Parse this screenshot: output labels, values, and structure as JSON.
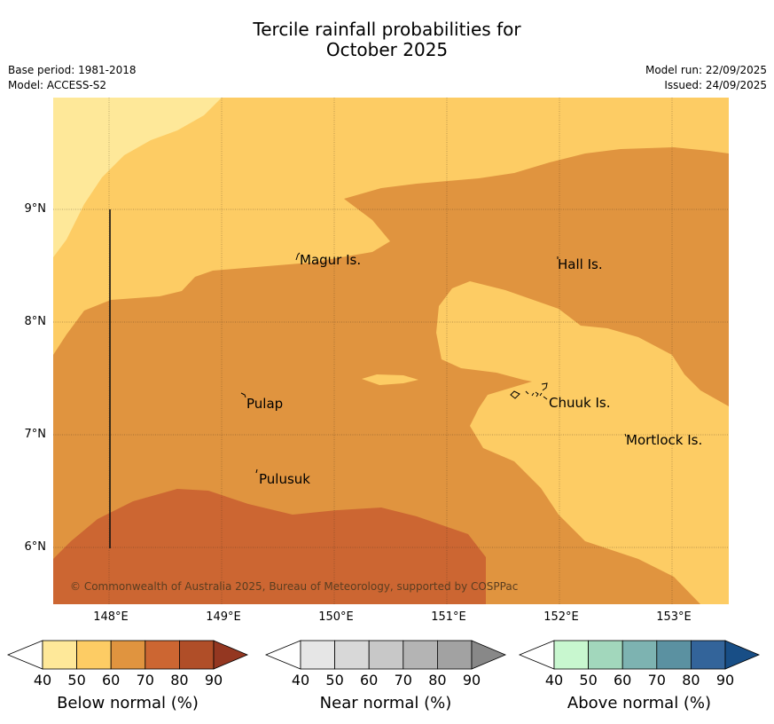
{
  "title": {
    "line1": "Tercile rainfall probabilities for",
    "line2": "October 2025"
  },
  "meta_left": {
    "base_period": "Base period: 1981-2018",
    "model": "Model: ACCESS-S2"
  },
  "meta_right": {
    "model_run": "Model run: 22/09/2025",
    "issued": "Issued: 24/09/2025"
  },
  "map": {
    "lat_labels": [
      "9°N",
      "8°N",
      "7°N",
      "6°N"
    ],
    "lon_labels": [
      "148°E",
      "149°E",
      "150°E",
      "151°E",
      "152°E",
      "153°E"
    ],
    "places": [
      "Magur Is.",
      "Hall Is.",
      "Pulap",
      "Chuuk Is.",
      "Mortlock Is.",
      "Pulusuk"
    ],
    "copyright": "© Commonwealth of Australia 2025, Bureau of Meteorology, supported by COSPPac",
    "fill_colors": {
      "below_40_50": "#fee899",
      "below_50_60": "#fdcc64",
      "below_60_70": "#e0943f",
      "below_70_80": "#cc6632"
    }
  },
  "colorbars": [
    {
      "label": "Below normal (%)",
      "ticks": [
        "40",
        "50",
        "60",
        "70",
        "80",
        "90"
      ],
      "colors": [
        "#ffffff",
        "#fee899",
        "#fdcc64",
        "#e0943f",
        "#cc6632",
        "#b04e28",
        "#943721"
      ]
    },
    {
      "label": "Near normal (%)",
      "ticks": [
        "40",
        "50",
        "60",
        "70",
        "80",
        "90"
      ],
      "colors": [
        "#ffffff",
        "#e6e6e6",
        "#d8d8d8",
        "#c8c8c8",
        "#b4b4b4",
        "#a2a2a2",
        "#888888"
      ]
    },
    {
      "label": "Above normal (%)",
      "ticks": [
        "40",
        "50",
        "60",
        "70",
        "80",
        "90"
      ],
      "colors": [
        "#ffffff",
        "#c8f7cf",
        "#a2d7bc",
        "#7db3b1",
        "#5b91a1",
        "#33649a",
        "#184e86"
      ]
    }
  ]
}
